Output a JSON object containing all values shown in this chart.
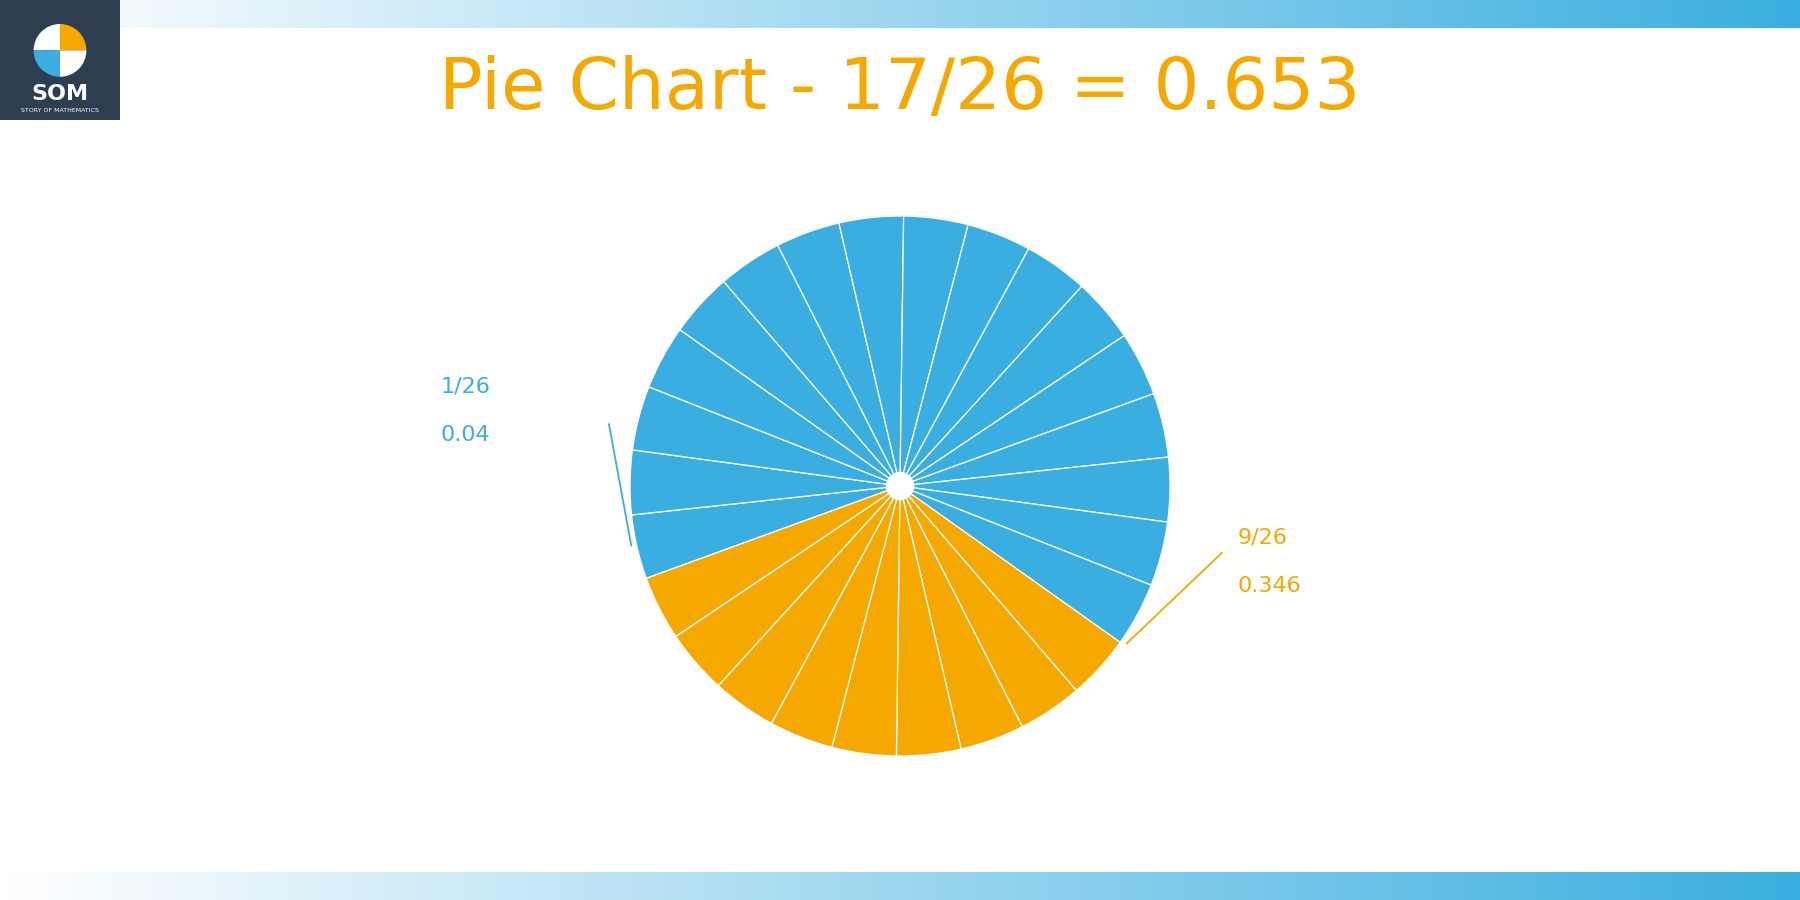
{
  "title": "Pie Chart - 17/26 = 0.653",
  "title_color": "#F5A800",
  "title_fontsize": 52,
  "total_slices": 26,
  "blue_slices": 17,
  "gold_slices": 9,
  "blue_color": "#3AAEE0",
  "gold_color": "#F5A800",
  "background_color": "#FFFFFF",
  "label_blue_text1": "1/26",
  "label_blue_text2": "0.04",
  "label_blue_color": "#3AAEE0",
  "label_gold_text1": "9/26",
  "label_gold_text2": "0.346",
  "label_gold_color": "#F5A800",
  "bar_blue_light": "#A8DDEF",
  "bar_blue_mid": "#3AAEE0",
  "logo_bg": "#2C3E50",
  "logo_orange": "#F5A800",
  "logo_blue": "#3AAEE0",
  "logo_white": "#FFFFFF",
  "figsize": [
    18,
    9
  ],
  "dpi": 100
}
